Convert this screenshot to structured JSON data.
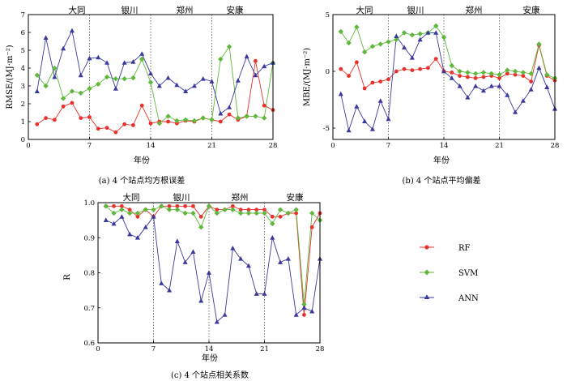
{
  "station_labels": [
    "大同",
    "银川",
    "郑州",
    "安康"
  ],
  "colors": {
    "RF": "#e8322b",
    "SVM": "#5fb83b",
    "ANN": "#3a3a9e",
    "axis": "#000000",
    "divider": "#555555"
  },
  "legend": [
    {
      "name": "RF",
      "marker": "circle"
    },
    {
      "name": "SVM",
      "marker": "diamond"
    },
    {
      "name": "ANN",
      "marker": "triangle"
    }
  ],
  "chart_data": [
    {
      "type": "line",
      "caption": "(a) 4 个站点均方根误差",
      "ylabel": "RMSE/(MJ·m⁻²)",
      "xlabel": "年份",
      "xlim": [
        0,
        28
      ],
      "ylim": [
        0,
        7
      ],
      "xticks": [
        0,
        7,
        14,
        21,
        28
      ],
      "yticks": [
        0,
        1,
        2,
        3,
        4,
        5,
        6,
        7
      ],
      "dividers": [
        7,
        14,
        21
      ],
      "x": [
        1,
        2,
        3,
        4,
        5,
        6,
        7,
        8,
        9,
        10,
        11,
        12,
        13,
        14,
        15,
        16,
        17,
        18,
        19,
        20,
        21,
        22,
        23,
        24,
        25,
        26,
        27,
        28
      ],
      "series": [
        {
          "name": "RF",
          "values": [
            0.85,
            1.2,
            1.1,
            1.85,
            2.05,
            1.2,
            1.25,
            0.6,
            0.65,
            0.4,
            0.85,
            0.8,
            1.9,
            0.9,
            1.0,
            1.0,
            0.9,
            1.05,
            1.0,
            1.2,
            1.1,
            1.0,
            1.4,
            1.1,
            1.3,
            4.4,
            1.9,
            1.65
          ]
        },
        {
          "name": "SVM",
          "values": [
            3.6,
            3.0,
            4.0,
            2.3,
            2.7,
            2.6,
            2.85,
            3.1,
            3.5,
            3.4,
            3.4,
            3.45,
            4.5,
            3.2,
            0.9,
            1.3,
            1.05,
            1.1,
            1.05,
            1.2,
            1.1,
            4.5,
            5.2,
            1.2,
            1.3,
            1.3,
            1.2,
            4.3
          ]
        },
        {
          "name": "ANN",
          "values": [
            2.7,
            5.7,
            3.5,
            5.1,
            6.1,
            3.6,
            4.55,
            4.6,
            4.3,
            2.85,
            4.3,
            4.35,
            4.8,
            3.7,
            3.0,
            3.45,
            3.05,
            2.7,
            3.0,
            3.4,
            3.25,
            1.45,
            1.8,
            3.3,
            4.65,
            3.6,
            4.1,
            4.3
          ]
        }
      ]
    },
    {
      "type": "line",
      "caption": "(b) 4 个站点平均偏差",
      "ylabel": "MBE/(MJ·m⁻²)",
      "xlabel": "年份",
      "xlim": [
        0,
        28
      ],
      "ylim": [
        -6,
        5
      ],
      "xticks": [
        0,
        7,
        14,
        21,
        28
      ],
      "yticks": [
        -5,
        0,
        5
      ],
      "dividers": [
        7,
        14,
        21
      ],
      "x": [
        1,
        2,
        3,
        4,
        5,
        6,
        7,
        8,
        9,
        10,
        11,
        12,
        13,
        14,
        15,
        16,
        17,
        18,
        19,
        20,
        21,
        22,
        23,
        24,
        25,
        26,
        27,
        28
      ],
      "series": [
        {
          "name": "RF",
          "values": [
            0.2,
            -0.4,
            0.8,
            -1.5,
            -1.0,
            -0.9,
            -0.7,
            0.0,
            0.2,
            0.1,
            0.2,
            0.3,
            1.1,
            0.0,
            -0.1,
            -0.4,
            -0.5,
            -0.6,
            -0.5,
            -0.4,
            -0.6,
            -0.2,
            -0.3,
            -0.4,
            -0.9,
            2.3,
            -0.4,
            -0.8
          ]
        },
        {
          "name": "SVM",
          "values": [
            3.5,
            2.5,
            3.9,
            1.7,
            2.2,
            2.4,
            2.6,
            2.8,
            3.4,
            3.2,
            3.3,
            3.4,
            4.0,
            3.0,
            0.5,
            0.0,
            -0.1,
            -0.2,
            -0.1,
            -0.2,
            -0.3,
            0.1,
            0.0,
            -0.1,
            -0.2,
            2.4,
            -0.3,
            -0.6
          ]
        },
        {
          "name": "ANN",
          "values": [
            -2.0,
            -5.2,
            -3.1,
            -4.4,
            -5.1,
            -2.6,
            -4.2,
            3.1,
            2.1,
            1.2,
            2.8,
            3.4,
            3.4,
            0.0,
            -0.6,
            -1.3,
            -2.3,
            -1.3,
            -1.7,
            -1.3,
            -1.3,
            -2.1,
            -3.6,
            -2.6,
            -1.6,
            0.3,
            -1.4,
            -3.3
          ]
        }
      ]
    },
    {
      "type": "line",
      "caption": "(c) 4 个站点相关系数",
      "ylabel": "R",
      "xlabel": "年份",
      "xlim": [
        0,
        28
      ],
      "ylim": [
        0.6,
        1.0
      ],
      "xticks": [
        0,
        7,
        14,
        21,
        28
      ],
      "yticks": [
        0.6,
        0.7,
        0.8,
        0.9,
        1.0
      ],
      "dividers": [
        7,
        14,
        21
      ],
      "x": [
        1,
        2,
        3,
        4,
        5,
        6,
        7,
        8,
        9,
        10,
        11,
        12,
        13,
        14,
        15,
        16,
        17,
        18,
        19,
        20,
        21,
        22,
        23,
        24,
        25,
        26,
        27,
        28
      ],
      "series": [
        {
          "name": "RF",
          "values": [
            0.99,
            0.99,
            0.99,
            0.98,
            0.96,
            0.98,
            0.96,
            0.99,
            0.99,
            0.99,
            0.99,
            0.99,
            0.96,
            0.99,
            0.98,
            0.98,
            0.99,
            0.98,
            0.98,
            0.98,
            0.98,
            0.96,
            0.96,
            0.97,
            0.97,
            0.68,
            0.93,
            0.97
          ]
        },
        {
          "name": "SVM",
          "values": [
            0.99,
            0.97,
            0.98,
            0.97,
            0.97,
            0.98,
            0.98,
            0.99,
            0.98,
            0.98,
            0.97,
            0.97,
            0.93,
            0.99,
            0.97,
            0.98,
            0.98,
            0.97,
            0.97,
            0.97,
            0.97,
            0.94,
            0.98,
            0.97,
            0.98,
            0.71,
            0.97,
            0.95
          ]
        },
        {
          "name": "ANN",
          "values": [
            0.95,
            0.94,
            0.96,
            0.91,
            0.9,
            0.93,
            0.96,
            0.77,
            0.75,
            0.89,
            0.83,
            0.86,
            0.72,
            0.8,
            0.66,
            0.68,
            0.87,
            0.84,
            0.82,
            0.74,
            0.74,
            0.9,
            0.83,
            0.84,
            0.68,
            0.7,
            0.69,
            0.84
          ]
        }
      ]
    }
  ]
}
